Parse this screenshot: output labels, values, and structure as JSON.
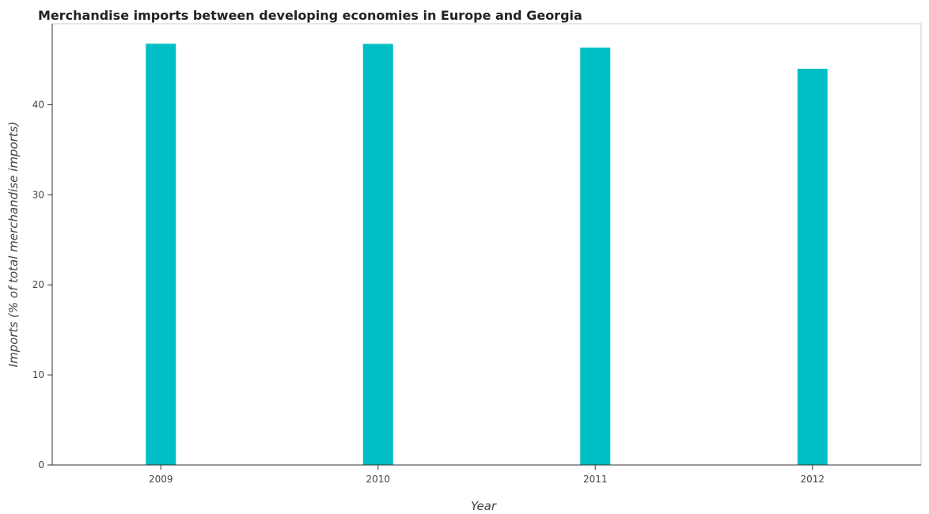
{
  "title": "Merchandise imports between developing economies in Europe and Georgia",
  "chart_data": {
    "type": "bar",
    "title": "Merchandise imports between developing economies in Europe and Georgia",
    "xlabel": "Year",
    "ylabel": "Imports (% of total merchandise imports)",
    "categories": [
      "2009",
      "2010",
      "2011",
      "2012"
    ],
    "values": [
      46.78,
      46.76,
      46.34,
      44.0
    ],
    "ylim": [
      0,
      49
    ],
    "yticks": [
      0,
      10,
      20,
      30,
      40
    ],
    "grid": false,
    "legend": "none",
    "bar_color": "#00bfc4"
  }
}
